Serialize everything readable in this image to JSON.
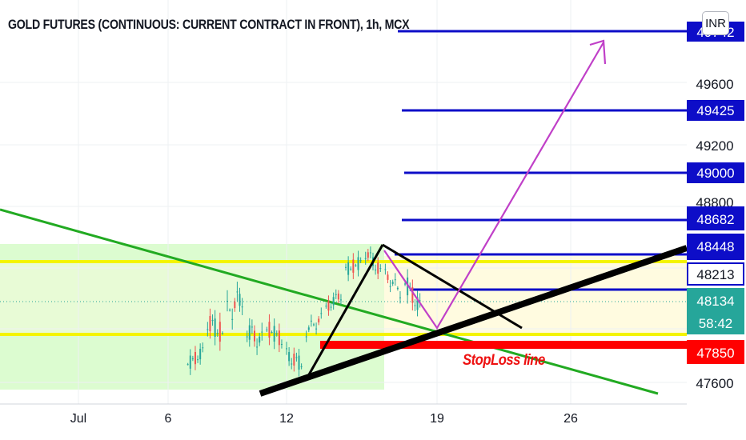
{
  "header": {
    "title": "GOLD FUTURES (CONTINUOUS: CURRENT CONTRACT IN FRONT), 1h, MCX",
    "currency": "INR"
  },
  "annotations": {
    "stoploss_label": "StopLoss line"
  },
  "colors": {
    "blue_level": "#0d0dc8",
    "yellow_level": "#f4f400",
    "stoploss": "#ff0000",
    "green_trend": "#22aa22",
    "projection": "#c040c8",
    "pattern": "#000000",
    "last_price": "#26a69a",
    "zone_green": "#dcfcd0",
    "zone_yellow": "#fffbe0"
  },
  "chart_data": {
    "type": "candlestick",
    "title": "GOLD FUTURES (CONTINUOUS: CURRENT CONTRACT IN FRONT), 1h, MCX",
    "currency": "INR",
    "x_axis": {
      "tick_labels": [
        "Jul",
        "6",
        "12",
        "19",
        "26"
      ],
      "range": [
        "Jul 1",
        "Jul 31"
      ]
    },
    "y_axis": {
      "tick_labels": [
        "47600",
        "48800",
        "49200",
        "49600"
      ],
      "range": [
        47520,
        49870
      ],
      "position": "right"
    },
    "price_labels": [
      {
        "value": "49742",
        "style": "blue",
        "overlapped_by_currency_badge": true
      },
      {
        "value": "49425",
        "style": "blue"
      },
      {
        "value": "49000",
        "style": "blue"
      },
      {
        "value": "48682",
        "style": "blue"
      },
      {
        "value": "48448",
        "style": "blue"
      },
      {
        "value": "48213",
        "style": "blue-outline"
      },
      {
        "value": "48134",
        "style": "last-price",
        "countdown": "58:42"
      },
      {
        "value": "47850",
        "style": "red"
      }
    ],
    "last_price": 48134,
    "countdown": "58:42",
    "target_levels": [
      49742,
      49425,
      49000,
      48682,
      48448,
      48213
    ],
    "yellow_levels": [
      48340,
      47970
    ],
    "stoploss_level": 47850,
    "green_zone": [
      47505,
      48420
    ],
    "candles_ohlc_approx": [
      [
        "Jul 7",
        47640,
        47760,
        47520,
        47720
      ],
      [
        "Jul 8",
        47920,
        48010,
        47640,
        47840
      ],
      [
        "Jul 9",
        47980,
        48150,
        47720,
        48080
      ],
      [
        "Jul 10",
        47860,
        48020,
        47660,
        47790
      ],
      [
        "Jul 11",
        47880,
        47990,
        47700,
        47800
      ],
      [
        "Jul 12",
        47700,
        47800,
        47520,
        47640
      ],
      [
        "Jul 13",
        47860,
        47980,
        47760,
        47940
      ],
      [
        "Jul 14",
        48010,
        48130,
        47920,
        48100
      ],
      [
        "Jul 15",
        48260,
        48360,
        48120,
        48310
      ],
      [
        "Jul 16",
        48380,
        48440,
        48190,
        48250
      ],
      [
        "Jul 17",
        48230,
        48290,
        48060,
        48120
      ],
      [
        "Jul 18",
        48180,
        48280,
        47940,
        48010
      ]
    ]
  }
}
